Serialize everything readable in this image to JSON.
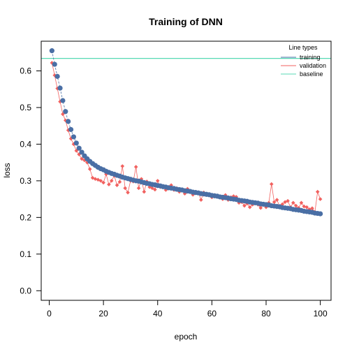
{
  "chart_data": {
    "type": "line",
    "title": "Training of DNN",
    "xlabel": "epoch",
    "ylabel": "loss",
    "xlim": [
      -2.96,
      103.96
    ],
    "ylim": [
      -0.0262,
      0.681
    ],
    "xticks": [
      "0",
      "20",
      "40",
      "60",
      "80",
      "100"
    ],
    "yticks": [
      "0.0",
      "0.1",
      "0.2",
      "0.3",
      "0.4",
      "0.5",
      "0.6"
    ],
    "grid": false,
    "legend": {
      "title": "Line types",
      "placement": "top-right",
      "entries": [
        "training",
        "validation",
        "baseline"
      ]
    },
    "baseline": 0.634,
    "colors": {
      "training": "#4a6fa5",
      "validation": "#f1615f",
      "baseline": "#57d9b4"
    },
    "series": [
      {
        "name": "training",
        "x": [
          1,
          2,
          3,
          4,
          5,
          6,
          7,
          8,
          9,
          10,
          11,
          12,
          13,
          14,
          15,
          16,
          17,
          18,
          19,
          20,
          21,
          22,
          23,
          24,
          25,
          26,
          27,
          28,
          29,
          30,
          31,
          32,
          33,
          34,
          35,
          36,
          37,
          38,
          39,
          40,
          41,
          42,
          43,
          44,
          45,
          46,
          47,
          48,
          49,
          50,
          51,
          52,
          53,
          54,
          55,
          56,
          57,
          58,
          59,
          60,
          61,
          62,
          63,
          64,
          65,
          66,
          67,
          68,
          69,
          70,
          71,
          72,
          73,
          74,
          75,
          76,
          77,
          78,
          79,
          80,
          81,
          82,
          83,
          84,
          85,
          86,
          87,
          88,
          89,
          90,
          91,
          92,
          93,
          94,
          95,
          96,
          97,
          98,
          99,
          100
        ],
        "values": [
          0.655,
          0.618,
          0.585,
          0.553,
          0.519,
          0.489,
          0.462,
          0.44,
          0.42,
          0.403,
          0.389,
          0.378,
          0.368,
          0.36,
          0.353,
          0.347,
          0.342,
          0.337,
          0.333,
          0.33,
          0.326,
          0.323,
          0.32,
          0.318,
          0.315,
          0.313,
          0.31,
          0.308,
          0.306,
          0.304,
          0.302,
          0.3,
          0.299,
          0.297,
          0.295,
          0.293,
          0.292,
          0.29,
          0.289,
          0.287,
          0.286,
          0.284,
          0.283,
          0.281,
          0.28,
          0.279,
          0.277,
          0.276,
          0.275,
          0.273,
          0.272,
          0.271,
          0.269,
          0.268,
          0.267,
          0.265,
          0.264,
          0.263,
          0.262,
          0.26,
          0.259,
          0.258,
          0.256,
          0.255,
          0.254,
          0.253,
          0.251,
          0.25,
          0.249,
          0.247,
          0.246,
          0.245,
          0.244,
          0.242,
          0.241,
          0.24,
          0.239,
          0.237,
          0.236,
          0.235,
          0.234,
          0.232,
          0.231,
          0.23,
          0.229,
          0.227,
          0.226,
          0.225,
          0.224,
          0.222,
          0.221,
          0.22,
          0.219,
          0.217,
          0.216,
          0.215,
          0.214,
          0.212,
          0.211,
          0.21
        ]
      },
      {
        "name": "validation",
        "x": [
          1,
          2,
          3,
          4,
          5,
          6,
          7,
          8,
          9,
          10,
          11,
          12,
          13,
          14,
          15,
          16,
          17,
          18,
          19,
          20,
          21,
          22,
          23,
          24,
          25,
          26,
          27,
          28,
          29,
          30,
          31,
          32,
          33,
          34,
          35,
          36,
          37,
          38,
          39,
          40,
          41,
          42,
          43,
          44,
          45,
          46,
          47,
          48,
          49,
          50,
          51,
          52,
          53,
          54,
          55,
          56,
          57,
          58,
          59,
          60,
          61,
          62,
          63,
          64,
          65,
          66,
          67,
          68,
          69,
          70,
          71,
          72,
          73,
          74,
          75,
          76,
          77,
          78,
          79,
          80,
          81,
          82,
          83,
          84,
          85,
          86,
          87,
          88,
          89,
          90,
          91,
          92,
          93,
          94,
          95,
          96,
          97,
          98,
          99,
          100
        ],
        "values": [
          0.622,
          0.588,
          0.552,
          0.516,
          0.482,
          0.465,
          0.438,
          0.415,
          0.4,
          0.382,
          0.372,
          0.36,
          0.356,
          0.35,
          0.332,
          0.308,
          0.305,
          0.303,
          0.3,
          0.295,
          0.318,
          0.29,
          0.3,
          0.314,
          0.288,
          0.297,
          0.34,
          0.28,
          0.268,
          0.3,
          0.298,
          0.338,
          0.28,
          0.305,
          0.27,
          0.298,
          0.283,
          0.28,
          0.276,
          0.3,
          0.283,
          0.285,
          0.275,
          0.283,
          0.288,
          0.275,
          0.28,
          0.27,
          0.274,
          0.265,
          0.278,
          0.27,
          0.262,
          0.27,
          0.268,
          0.248,
          0.268,
          0.262,
          0.262,
          0.255,
          0.261,
          0.258,
          0.256,
          0.25,
          0.261,
          0.248,
          0.255,
          0.258,
          0.256,
          0.24,
          0.242,
          0.232,
          0.238,
          0.228,
          0.235,
          0.24,
          0.235,
          0.226,
          0.236,
          0.228,
          0.24,
          0.291,
          0.242,
          0.248,
          0.23,
          0.236,
          0.242,
          0.245,
          0.228,
          0.24,
          0.232,
          0.226,
          0.24,
          0.23,
          0.228,
          0.222,
          0.225,
          0.215,
          0.27,
          0.25
        ]
      }
    ]
  }
}
